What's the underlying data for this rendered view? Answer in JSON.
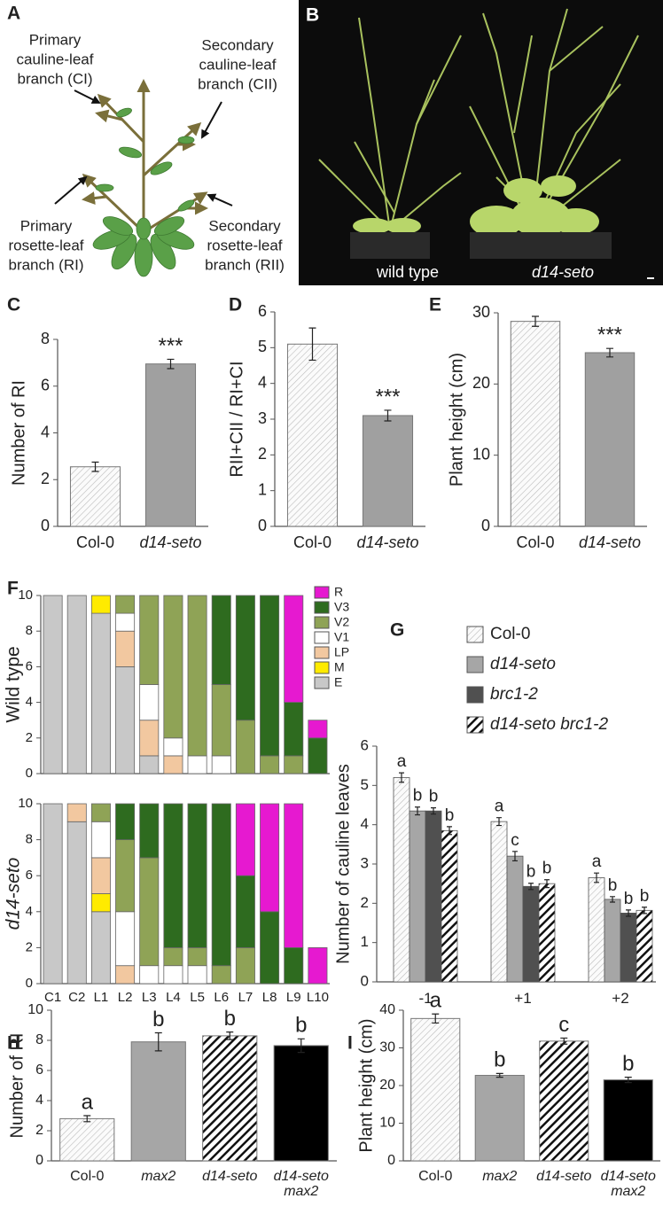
{
  "diagram": {
    "panel": "A",
    "labels": [
      {
        "lines": [
          "Primary",
          "cauline-leaf",
          "branch (CI)"
        ]
      },
      {
        "lines": [
          "Secondary",
          "cauline-leaf",
          "branch (CII)"
        ]
      },
      {
        "lines": [
          "Primary",
          "rosette-leaf",
          "branch (RI)"
        ]
      },
      {
        "lines": [
          "Secondary",
          "rosette-leaf",
          "branch (RII)"
        ]
      }
    ]
  },
  "photo": {
    "panel": "B",
    "labels": [
      "wild type",
      "d14-seto"
    ]
  },
  "chart_data": [
    {
      "type": "bar",
      "panel": "C",
      "ylabel": "Number of RI",
      "categories": [
        "Col-0",
        "d14-seto"
      ],
      "values": [
        2.55,
        6.95
      ],
      "errors": [
        0.2,
        0.2
      ],
      "bar_labels": [
        null,
        "***"
      ],
      "fills": [
        "hatch-light",
        "#a0a0a0"
      ],
      "ylim": [
        0,
        8
      ],
      "yticks": [
        0,
        2,
        4,
        6,
        8
      ]
    },
    {
      "type": "bar",
      "panel": "D",
      "ylabel": "RII+CII / RI+CI",
      "categories": [
        "Col-0",
        "d14-seto"
      ],
      "values": [
        5.1,
        3.1
      ],
      "errors": [
        0.45,
        0.15
      ],
      "bar_labels": [
        null,
        "***"
      ],
      "fills": [
        "hatch-light",
        "#a0a0a0"
      ],
      "ylim": [
        0,
        6
      ],
      "yticks": [
        0,
        1,
        2,
        3,
        4,
        5,
        6
      ]
    },
    {
      "type": "bar",
      "panel": "E",
      "ylabel": "Plant height (cm)",
      "categories": [
        "Col-0",
        "d14-seto"
      ],
      "values": [
        28.8,
        24.4
      ],
      "errors": [
        0.7,
        0.6
      ],
      "bar_labels": [
        null,
        "***"
      ],
      "fills": [
        "hatch-light",
        "#a0a0a0"
      ],
      "ylim": [
        0,
        30
      ],
      "yticks": [
        0,
        10,
        20,
        30
      ]
    },
    {
      "type": "stacked-bar",
      "panel": "F",
      "ylabel": "Wild type",
      "ylim": [
        0,
        10
      ],
      "yticks": [
        0,
        2,
        4,
        6,
        8,
        10
      ],
      "series": [
        {
          "name": "E",
          "color": "#c8c8c8",
          "values": [
            10,
            10,
            9,
            6,
            1,
            0,
            0,
            0,
            0,
            0,
            0,
            0
          ]
        },
        {
          "name": "M",
          "color": "#ffeb00",
          "values": [
            0,
            0,
            1,
            0,
            0,
            0,
            0,
            0,
            0,
            0,
            0,
            0
          ]
        },
        {
          "name": "LP",
          "color": "#f2c8a0",
          "values": [
            0,
            0,
            0,
            2,
            2,
            1,
            0,
            0,
            0,
            0,
            0,
            0
          ]
        },
        {
          "name": "V1",
          "color": "#ffffff",
          "values": [
            0,
            0,
            0,
            1,
            2,
            1,
            1,
            1,
            0,
            0,
            0,
            0
          ]
        },
        {
          "name": "V2",
          "color": "#8fa356",
          "values": [
            0,
            0,
            0,
            1,
            5,
            8,
            9,
            4,
            3,
            1,
            1,
            0
          ]
        },
        {
          "name": "V3",
          "color": "#2e6b1f",
          "values": [
            0,
            0,
            0,
            0,
            0,
            0,
            0,
            5,
            7,
            9,
            3,
            2
          ]
        },
        {
          "name": "R",
          "color": "#e619d0",
          "values": [
            0,
            0,
            0,
            0,
            0,
            0,
            0,
            0,
            0,
            0,
            6,
            1
          ]
        }
      ]
    },
    {
      "type": "stacked-bar",
      "ylabel": "d14-seto",
      "ylim": [
        0,
        10
      ],
      "yticks": [
        0,
        2,
        4,
        6,
        8,
        10
      ],
      "categories": [
        "C1",
        "C2",
        "L1",
        "L2",
        "L3",
        "L4",
        "L5",
        "L6",
        "L7",
        "L8",
        "L9",
        "L10"
      ],
      "series": [
        {
          "color": "#c8c8c8",
          "values": [
            10,
            9,
            4,
            0,
            0,
            0,
            0,
            0,
            0,
            0,
            0,
            0
          ]
        },
        {
          "color": "#ffeb00",
          "values": [
            0,
            0,
            1,
            0,
            0,
            0,
            0,
            0,
            0,
            0,
            0,
            0
          ]
        },
        {
          "color": "#f2c8a0",
          "values": [
            0,
            1,
            2,
            1,
            0,
            0,
            0,
            0,
            0,
            0,
            0,
            0
          ]
        },
        {
          "color": "#ffffff",
          "values": [
            0,
            0,
            2,
            3,
            1,
            1,
            1,
            0,
            0,
            0,
            0,
            0
          ]
        },
        {
          "color": "#8fa356",
          "values": [
            0,
            0,
            1,
            4,
            6,
            1,
            1,
            1,
            2,
            0,
            0,
            0
          ]
        },
        {
          "color": "#2e6b1f",
          "values": [
            0,
            0,
            0,
            2,
            3,
            8,
            8,
            9,
            4,
            4,
            2,
            0
          ]
        },
        {
          "color": "#e619d0",
          "values": [
            0,
            0,
            0,
            0,
            0,
            0,
            0,
            0,
            4,
            6,
            8,
            2
          ]
        }
      ]
    },
    {
      "type": "grouped-bar",
      "panel": "G",
      "ylabel": "Number of cauline leaves",
      "categories": [
        "-1",
        "+1",
        "+2"
      ],
      "ylim": [
        0,
        6
      ],
      "yticks": [
        0,
        1,
        2,
        3,
        4,
        5,
        6
      ],
      "series": [
        {
          "name": "Col-0",
          "fill": "hatch-light",
          "values": [
            5.2,
            4.08,
            2.65
          ],
          "errors": [
            0.12,
            0.1,
            0.12
          ],
          "bar_labels": [
            "a",
            "a",
            "a"
          ]
        },
        {
          "name": "d14-seto",
          "fill": "#a6a6a6",
          "values": [
            4.35,
            3.2,
            2.1
          ],
          "errors": [
            0.1,
            0.12,
            0.07
          ],
          "bar_labels": [
            "b",
            "c",
            "b"
          ]
        },
        {
          "name": "brc1-2",
          "fill": "#505050",
          "values": [
            4.35,
            2.43,
            1.75
          ],
          "errors": [
            0.08,
            0.08,
            0.08
          ],
          "bar_labels": [
            "b",
            "b",
            "b"
          ]
        },
        {
          "name": "d14-seto brc1-2",
          "fill": "stripes",
          "values": [
            3.85,
            2.5,
            1.82
          ],
          "errors": [
            0.1,
            0.1,
            0.08
          ],
          "bar_labels": [
            "b",
            "b",
            "b"
          ]
        }
      ]
    },
    {
      "type": "bar",
      "panel": "H",
      "ylabel": "Number of RI",
      "categories": [
        "Col-0",
        "max2",
        "d14-seto",
        "d14-seto max2"
      ],
      "values": [
        2.8,
        7.9,
        8.3,
        7.65
      ],
      "errors": [
        0.2,
        0.6,
        0.25,
        0.45
      ],
      "bar_labels": [
        "a",
        "b",
        "b",
        "b"
      ],
      "fills": [
        "hatch-light",
        "#a6a6a6",
        "stripes",
        "#000000"
      ],
      "ylim": [
        0,
        10
      ],
      "yticks": [
        0,
        2,
        4,
        6,
        8,
        10
      ]
    },
    {
      "type": "bar",
      "panel": "I",
      "ylabel": "Plant height (cm)",
      "categories": [
        "Col-0",
        "max2",
        "d14-seto",
        "d14-seto max2"
      ],
      "values": [
        37.8,
        22.7,
        31.8,
        21.5
      ],
      "errors": [
        1.2,
        0.5,
        0.8,
        0.7
      ],
      "bar_labels": [
        "a",
        "b",
        "c",
        "b"
      ],
      "fills": [
        "hatch-light",
        "#a6a6a6",
        "stripes",
        "#000000"
      ],
      "ylim": [
        0,
        40
      ],
      "yticks": [
        0,
        10,
        20,
        30,
        40
      ]
    }
  ]
}
